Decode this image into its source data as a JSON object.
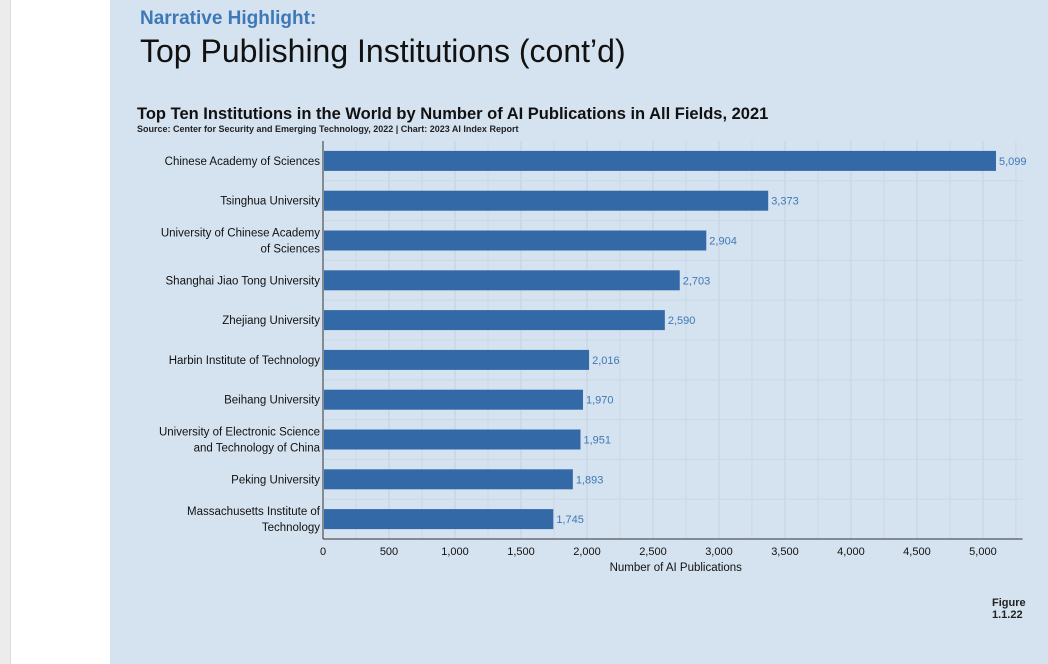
{
  "header": {
    "kicker": "Narrative Highlight:",
    "title": "Top Publishing Institutions (cont’d)"
  },
  "figure_label": "Figure 1.1.22",
  "chart_data": {
    "type": "bar",
    "orientation": "horizontal",
    "title": "Top Ten Institutions in the World by Number of AI Publications in All Fields, 2021",
    "subtitle": "Source: Center for Security and Emerging Technology, 2022 | Chart: 2023 AI Index Report",
    "categories": [
      [
        "Chinese Academy of Sciences"
      ],
      [
        "Tsinghua University"
      ],
      [
        "University of Chinese Academy",
        "of Sciences"
      ],
      [
        "Shanghai Jiao Tong University"
      ],
      [
        "Zhejiang University"
      ],
      [
        "Harbin Institute of Technology"
      ],
      [
        "Beihang University"
      ],
      [
        "University of Electronic Science",
        "and Technology of China"
      ],
      [
        "Peking University"
      ],
      [
        "Massachusetts Institute of",
        "Technology"
      ]
    ],
    "values": [
      5099,
      3373,
      2904,
      2703,
      2590,
      2016,
      1970,
      1951,
      1893,
      1745
    ],
    "value_labels": [
      "5,099",
      "3,373",
      "2,904",
      "2,703",
      "2,590",
      "2,016",
      "1,970",
      "1,951",
      "1,893",
      "1,745"
    ],
    "xlabel": "Number of AI Publications",
    "xticks": [
      0,
      500,
      1000,
      1500,
      2000,
      2500,
      3000,
      3500,
      4000,
      4500,
      5000
    ],
    "xtick_labels": [
      "0",
      "500",
      "1,000",
      "1,500",
      "2,000",
      "2,500",
      "3,000",
      "3,500",
      "4,000",
      "4,500",
      "5,000"
    ],
    "xlim": [
      0,
      5300
    ],
    "grid": true,
    "bar_color": "#3469a8",
    "label_color": "#3d78b8"
  }
}
